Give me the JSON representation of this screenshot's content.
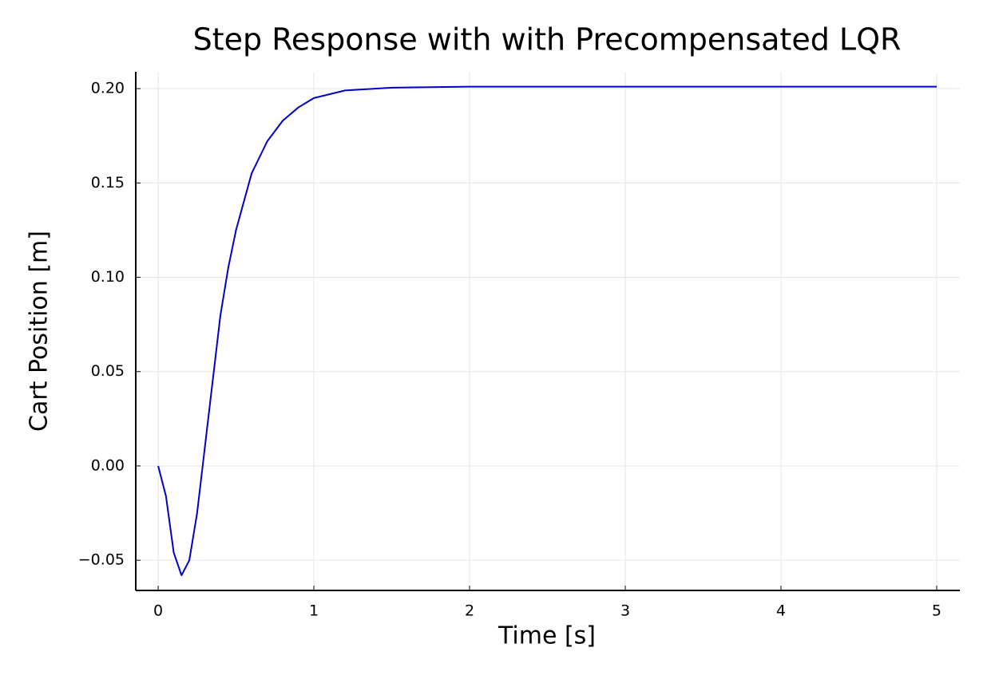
{
  "chart_data": {
    "type": "line",
    "title": "Step Response with with Precompensated LQR",
    "x_label": "Time [s]",
    "y_label": "Cart Position [m]",
    "x": [
      0,
      0.05,
      0.1,
      0.15,
      0.2,
      0.25,
      0.3,
      0.35,
      0.4,
      0.45,
      0.5,
      0.6,
      0.7,
      0.8,
      0.9,
      1.0,
      1.2,
      1.5,
      2,
      3,
      4,
      5
    ],
    "series": [
      {
        "name": "Cart Position",
        "color": "#0000cc",
        "values": [
          0,
          -0.016,
          -0.046,
          -0.058,
          -0.05,
          -0.025,
          0.01,
          0.045,
          0.08,
          0.105,
          0.125,
          0.155,
          0.172,
          0.183,
          0.19,
          0.195,
          0.199,
          0.2005,
          0.201,
          0.201,
          0.201,
          0.201
        ]
      }
    ],
    "xlim": [
      -0.144,
      5.149
    ],
    "ylim": [
      -0.066,
      0.2089
    ],
    "xticks": [
      0,
      1,
      2,
      3,
      4,
      5
    ],
    "yticks": [
      {
        "value": -0.05,
        "label": "−0.05"
      },
      {
        "value": 0,
        "label": "0.00"
      },
      {
        "value": 0.05,
        "label": "0.05"
      },
      {
        "value": 0.1,
        "label": "0.10"
      },
      {
        "value": 0.15,
        "label": "0.15"
      },
      {
        "value": 0.2,
        "label": "0.20"
      }
    ],
    "grid": true
  }
}
